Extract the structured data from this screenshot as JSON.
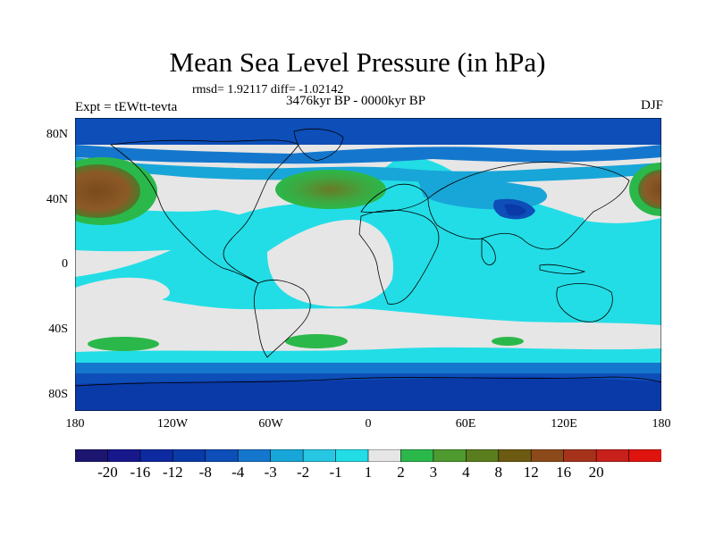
{
  "title": "Mean Sea Level Pressure (in hPa)",
  "stats": "rmsd= 1.92117 diff= -1.02142",
  "period": "3476kyr BP - 0000kyr BP",
  "experiment": "Expt = tEWtt-tevta",
  "season": "DJF",
  "lat_labels": [
    "80N",
    "40N",
    "0",
    "40S",
    "80S"
  ],
  "lon_labels": [
    "180",
    "120W",
    "60W",
    "0",
    "60E",
    "120E",
    "180"
  ],
  "colorbar": {
    "labels": [
      "-20",
      "-16",
      "-12",
      "-8",
      "-4",
      "-3",
      "-2",
      "-1",
      "1",
      "2",
      "3",
      "4",
      "8",
      "12",
      "16",
      "20"
    ],
    "colors": [
      "#1d1670",
      "#16188c",
      "#0d2aa0",
      "#0a3aa8",
      "#0d4eb8",
      "#1477cd",
      "#18a6d8",
      "#27c7e3",
      "#22dde6",
      "#e6e6e6",
      "#2bb84a",
      "#4e9a2f",
      "#5a7d1e",
      "#6d5a12",
      "#8c4a1a",
      "#a6321a",
      "#c8201a",
      "#e0140f"
    ]
  },
  "colors": {
    "land_outline": "#000000",
    "background_field": "#e6e6e6"
  }
}
